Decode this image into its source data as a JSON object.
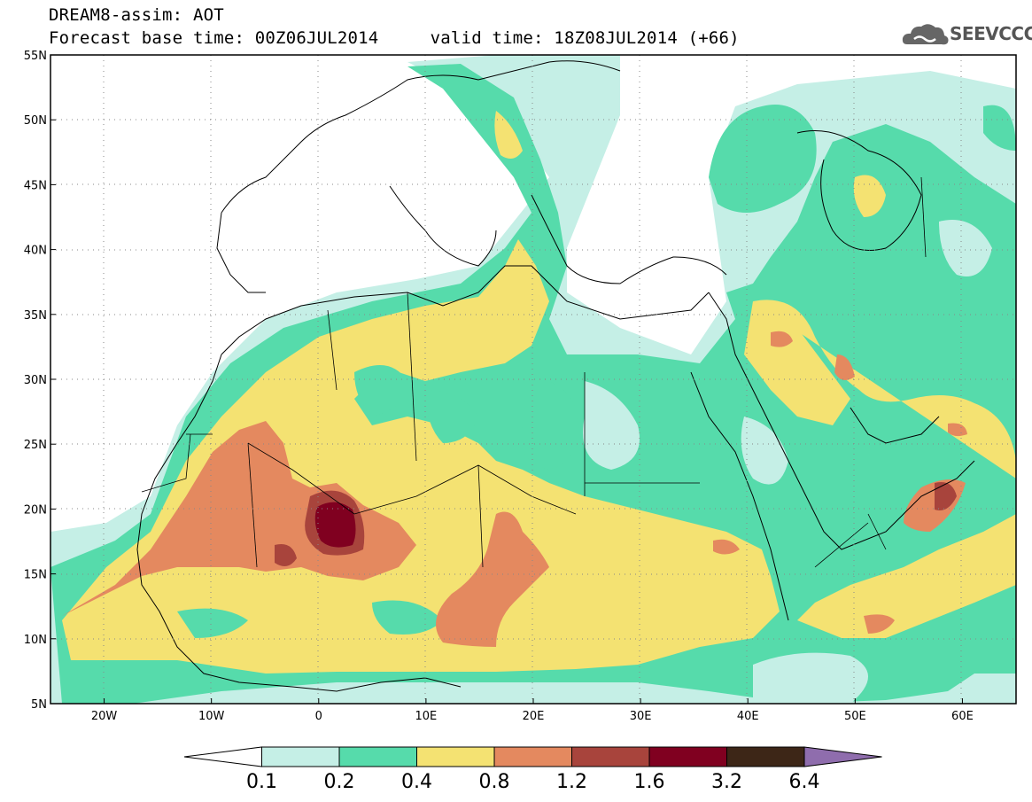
{
  "header": {
    "line1": "DREAM8-assim: AOT",
    "line2": "Forecast base time: 00Z06JUL2014     valid time: 18Z08JUL2014 (+66)"
  },
  "logo": {
    "text": "SEEVCCC",
    "icon": "cloud-icon"
  },
  "map": {
    "lat_labels": [
      "55N",
      "50N",
      "45N",
      "40N",
      "35N",
      "30N",
      "25N",
      "20N",
      "15N",
      "10N",
      "5N"
    ],
    "lon_labels": [
      "20W",
      "10W",
      "0",
      "10E",
      "20E",
      "30E",
      "40E",
      "50E",
      "60E"
    ],
    "lat_range": [
      5,
      55
    ],
    "lon_range": [
      -25,
      65
    ],
    "grid": "dotted"
  },
  "colorbar": {
    "levels": [
      "0.1",
      "0.2",
      "0.4",
      "0.8",
      "1.2",
      "1.6",
      "3.2",
      "6.4"
    ],
    "colors": [
      "#ffffff",
      "#c5efe6",
      "#56dbab",
      "#f4e272",
      "#e4895f",
      "#a8443c",
      "#800020",
      "#3d2617",
      "#8f6dad"
    ]
  },
  "chart_data": {
    "type": "heatmap",
    "variable": "AOT",
    "levels": [
      0.1,
      0.2,
      0.4,
      0.8,
      1.2,
      1.6,
      3.2,
      6.4
    ],
    "xlim": [
      -25,
      65
    ],
    "ylim": [
      5,
      55
    ]
  }
}
